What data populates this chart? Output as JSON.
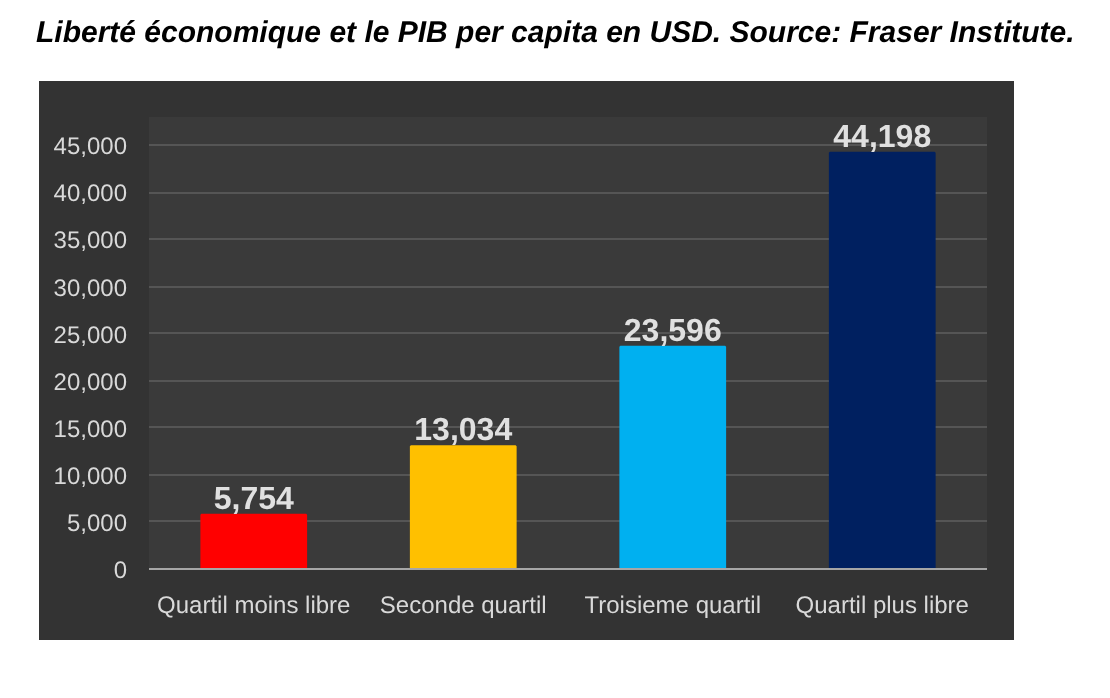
{
  "chart_data": {
    "type": "bar",
    "title": "Liberté économique et le PIB per capita en USD. Source: Fraser Institute.",
    "categories": [
      "Quartil moins libre",
      "Seconde quartil",
      "Troisieme quartil",
      "Quartil plus libre"
    ],
    "values": [
      5754,
      13034,
      23596,
      44198
    ],
    "colors": [
      "#ff0000",
      "#ffc000",
      "#00b0f0",
      "#002060"
    ],
    "ylim": [
      0,
      48000
    ],
    "yticks": [
      {
        "value": 0,
        "label": "0"
      },
      {
        "value": 5000,
        "label": "5,000"
      },
      {
        "value": 10000,
        "label": "10,000"
      },
      {
        "value": 15000,
        "label": "15,000"
      },
      {
        "value": 20000,
        "label": "20,000"
      },
      {
        "value": 25000,
        "label": "25,000"
      },
      {
        "value": 30000,
        "label": "30,000"
      },
      {
        "value": 35000,
        "label": "35,000"
      },
      {
        "value": 40000,
        "label": "40,000"
      },
      {
        "value": 45000,
        "label": "45,000"
      }
    ],
    "grid": "y",
    "value_labels": [
      "5,754",
      "13,034",
      "23,596",
      "44,198"
    ]
  }
}
